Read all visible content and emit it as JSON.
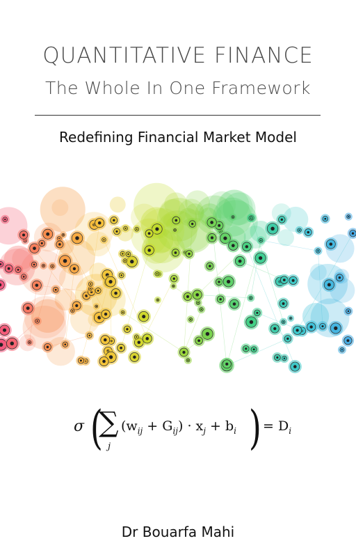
{
  "cover": {
    "title_line1": "QUANTITATIVE FINANCE",
    "title_line2": "The Whole In One Framework",
    "subtitle": "Redefining Financial Market Model",
    "author": "Dr Bouarfa Mahi"
  },
  "formula": {
    "sigma": "σ",
    "sum": "∑",
    "sum_index": "j",
    "body": "(w",
    "w_sub": "ij",
    "plus_g": " + G",
    "g_sub": "ij",
    "mid": ") · x",
    "x_sub": "j",
    "plus_b": " + b",
    "b_sub": "i",
    "equals": "= D",
    "d_sub": "i"
  },
  "illustration": {
    "description_icon": "colorful-network-icon",
    "colors": [
      "#f4577f",
      "#f7904a",
      "#f6c23a",
      "#c7dc2a",
      "#7fd34a",
      "#3fd08a",
      "#3ec6d8",
      "#4aa8e6"
    ]
  }
}
